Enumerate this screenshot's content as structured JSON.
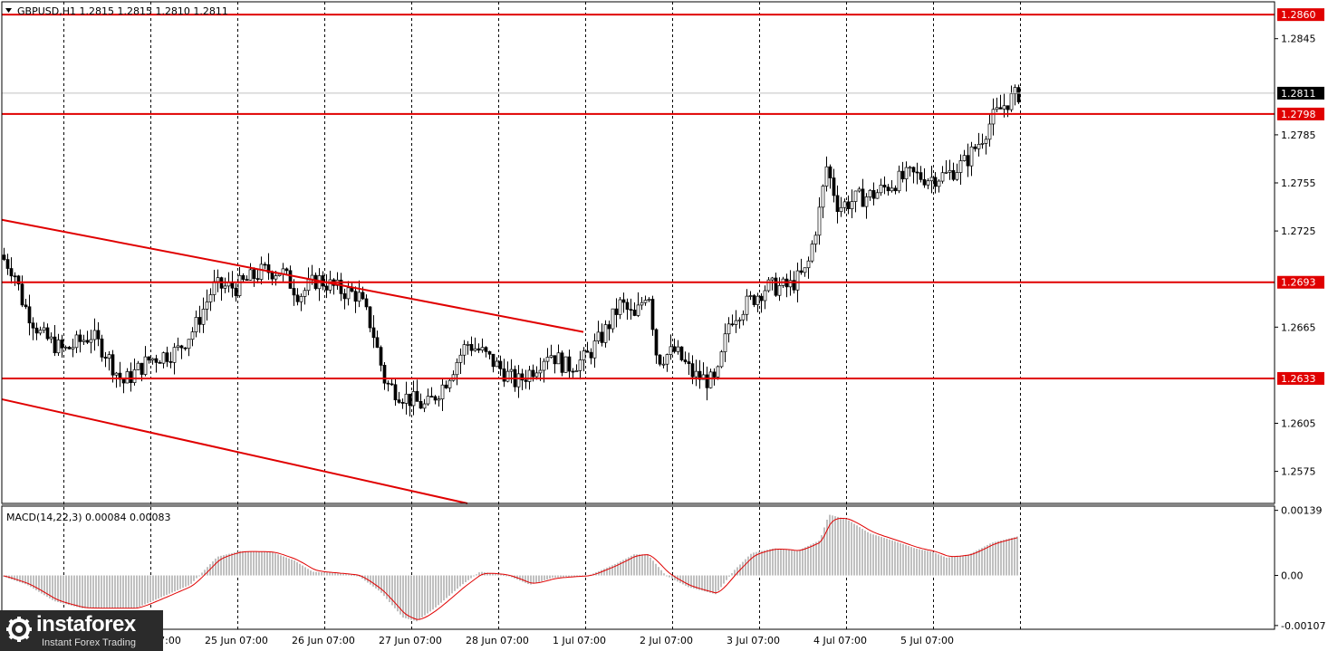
{
  "header": {
    "symbol": "GBPUSD,H1",
    "ohlc": "1.2815 1.2815 1.2810 1.2811"
  },
  "chart_data": [
    {
      "type": "candlestick",
      "title": "GBPUSD,H1  1.2815 1.2815 1.2810 1.2811",
      "ylim": [
        1.2555,
        1.2868
      ],
      "yticks": [
        1.2845,
        1.2785,
        1.2755,
        1.2725,
        1.2665,
        1.2605,
        1.2575
      ],
      "xticks": [
        "24 Jun 07:00",
        "25 Jun 07:00",
        "26 Jun 07:00",
        "27 Jun 07:00",
        "28 Jun 07:00",
        "1 Jul 07:00",
        "2 Jul 07:00",
        "3 Jul 07:00",
        "4 Jul 07:00",
        "5 Jul 07:00"
      ],
      "current_price": 1.2811,
      "current_price_label": "1.2811",
      "levels": [
        {
          "value": 1.286,
          "label": "1.2860"
        },
        {
          "value": 1.2798,
          "label": "1.2798"
        },
        {
          "value": 1.2693,
          "label": "1.2693"
        },
        {
          "value": 1.2633,
          "label": "1.2633"
        }
      ],
      "channel_lines": [
        {
          "start": 1.2732,
          "end": 1.2662
        },
        {
          "start": 1.262,
          "end": 1.2555
        }
      ],
      "trend_path": [
        [
          0,
          1.271
        ],
        [
          15,
          1.27
        ],
        [
          25,
          1.268
        ],
        [
          45,
          1.266
        ],
        [
          70,
          1.265
        ],
        [
          100,
          1.266
        ],
        [
          115,
          1.265
        ],
        [
          135,
          1.263
        ],
        [
          165,
          1.2645
        ],
        [
          195,
          1.265
        ],
        [
          215,
          1.2665
        ],
        [
          235,
          1.269
        ],
        [
          260,
          1.269
        ],
        [
          290,
          1.27
        ],
        [
          310,
          1.27
        ],
        [
          330,
          1.2685
        ],
        [
          350,
          1.2695
        ],
        [
          375,
          1.2688
        ],
        [
          395,
          1.2685
        ],
        [
          410,
          1.2665
        ],
        [
          425,
          1.263
        ],
        [
          445,
          1.2622
        ],
        [
          470,
          1.2615
        ],
        [
          490,
          1.263
        ],
        [
          515,
          1.2655
        ],
        [
          530,
          1.265
        ],
        [
          550,
          1.264
        ],
        [
          570,
          1.263
        ],
        [
          590,
          1.264
        ],
        [
          605,
          1.265
        ],
        [
          625,
          1.264
        ],
        [
          645,
          1.2645
        ],
        [
          665,
          1.266
        ],
        [
          685,
          1.268
        ],
        [
          700,
          1.267
        ],
        [
          715,
          1.269
        ],
        [
          725,
          1.2645
        ],
        [
          745,
          1.265
        ],
        [
          765,
          1.2635
        ],
        [
          790,
          1.263
        ],
        [
          805,
          1.267
        ],
        [
          825,
          1.268
        ],
        [
          845,
          1.269
        ],
        [
          870,
          1.269
        ],
        [
          890,
          1.27
        ],
        [
          905,
          1.274
        ],
        [
          912,
          1.2765
        ],
        [
          925,
          1.274
        ],
        [
          945,
          1.2745
        ],
        [
          965,
          1.2748
        ],
        [
          985,
          1.2755
        ],
        [
          1005,
          1.276
        ],
        [
          1025,
          1.2758
        ],
        [
          1045,
          1.276
        ],
        [
          1065,
          1.2768
        ],
        [
          1080,
          1.278
        ],
        [
          1095,
          1.2795
        ],
        [
          1110,
          1.2805
        ],
        [
          1125,
          1.2811
        ]
      ]
    },
    {
      "type": "histogram",
      "title": "MACD(14,22,3) 0.00084 0.00083",
      "ylim": [
        -0.00115,
        0.00148
      ],
      "yticks": [
        0.00139,
        0.0,
        -0.00107
      ],
      "ytick_labels": [
        "0.00139",
        "0.00",
        "-0.00107"
      ],
      "macd_path": [
        [
          0,
          0.0
        ],
        [
          30,
          -0.0002
        ],
        [
          60,
          -0.00055
        ],
        [
          90,
          -0.0007
        ],
        [
          120,
          -0.0007
        ],
        [
          150,
          -0.0007
        ],
        [
          180,
          -0.00045
        ],
        [
          210,
          -0.0002
        ],
        [
          240,
          0.0004
        ],
        [
          265,
          0.00052
        ],
        [
          300,
          0.0005
        ],
        [
          325,
          0.00032
        ],
        [
          345,
          8e-05
        ],
        [
          370,
          5e-05
        ],
        [
          395,
          0.0
        ],
        [
          420,
          -0.00035
        ],
        [
          445,
          -0.0009
        ],
        [
          460,
          -0.00098
        ],
        [
          480,
          -0.0007
        ],
        [
          510,
          -0.0002
        ],
        [
          530,
          8e-05
        ],
        [
          560,
          0.0
        ],
        [
          585,
          -0.0002
        ],
        [
          610,
          -5e-05
        ],
        [
          650,
          0.0
        ],
        [
          680,
          0.00025
        ],
        [
          700,
          0.00045
        ],
        [
          715,
          0.00045
        ],
        [
          735,
          0.0
        ],
        [
          760,
          -0.00025
        ],
        [
          790,
          -0.0004
        ],
        [
          810,
          0.0001
        ],
        [
          830,
          0.00048
        ],
        [
          855,
          0.00058
        ],
        [
          880,
          0.00052
        ],
        [
          905,
          0.00075
        ],
        [
          915,
          0.0013
        ],
        [
          935,
          0.0012
        ],
        [
          960,
          0.0009
        ],
        [
          985,
          0.00075
        ],
        [
          1010,
          0.00058
        ],
        [
          1030,
          0.0005
        ],
        [
          1045,
          0.00038
        ],
        [
          1070,
          0.00045
        ],
        [
          1095,
          0.0007
        ],
        [
          1125,
          0.00084
        ]
      ]
    }
  ],
  "logo": {
    "name": "instaforex",
    "tagline": "Instant Forex Trading"
  }
}
